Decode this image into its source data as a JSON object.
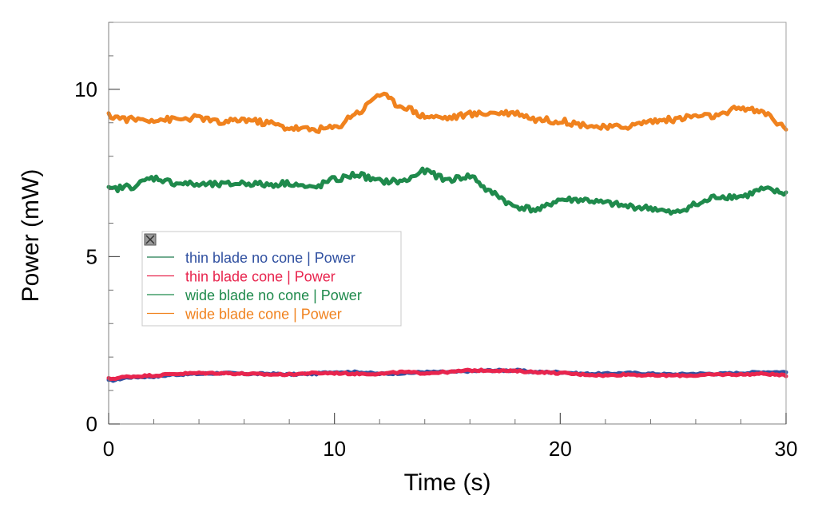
{
  "chart_data": {
    "type": "line",
    "title": "",
    "xlabel": "Time (s)",
    "ylabel": "Power (mW)",
    "xlim": [
      0,
      30
    ],
    "ylim": [
      0,
      12
    ],
    "x_ticks": [
      0,
      10,
      20,
      30
    ],
    "y_ticks": [
      0,
      5,
      10
    ],
    "x_minor_step": 2,
    "y_minor_step": 1,
    "grid": false,
    "legend_position": "middle-left",
    "x": [
      0,
      1,
      2,
      3,
      4,
      5,
      6,
      7,
      8,
      9,
      10,
      11,
      12,
      13,
      14,
      15,
      16,
      17,
      18,
      19,
      20,
      21,
      22,
      23,
      24,
      25,
      26,
      27,
      28,
      29,
      30
    ],
    "series": [
      {
        "name": "thin blade no cone | Power",
        "legend_color": "#1f7a4d",
        "text_color": "#3050a0",
        "line_color": "#3050a0",
        "values": [
          1.3,
          1.4,
          1.42,
          1.48,
          1.5,
          1.52,
          1.5,
          1.5,
          1.48,
          1.5,
          1.55,
          1.55,
          1.5,
          1.52,
          1.55,
          1.55,
          1.58,
          1.6,
          1.6,
          1.55,
          1.55,
          1.5,
          1.5,
          1.52,
          1.5,
          1.48,
          1.5,
          1.5,
          1.52,
          1.55,
          1.55
        ]
      },
      {
        "name": "thin blade cone | Power",
        "legend_color": "#e8254e",
        "text_color": "#e8254e",
        "line_color": "#e8254e",
        "values": [
          1.35,
          1.42,
          1.45,
          1.5,
          1.52,
          1.52,
          1.5,
          1.48,
          1.48,
          1.52,
          1.52,
          1.5,
          1.5,
          1.55,
          1.52,
          1.55,
          1.6,
          1.6,
          1.58,
          1.55,
          1.52,
          1.48,
          1.45,
          1.48,
          1.45,
          1.45,
          1.45,
          1.48,
          1.48,
          1.5,
          1.45
        ]
      },
      {
        "name": "wide blade no cone | Power",
        "legend_color": "#1f8a4c",
        "text_color": "#1f8a4c",
        "line_color": "#1f8a4c",
        "values": [
          7.0,
          7.1,
          7.35,
          7.2,
          7.15,
          7.15,
          7.2,
          7.15,
          7.2,
          7.05,
          7.3,
          7.45,
          7.25,
          7.25,
          7.55,
          7.3,
          7.4,
          6.9,
          6.5,
          6.4,
          6.7,
          6.7,
          6.6,
          6.5,
          6.45,
          6.3,
          6.55,
          6.8,
          6.8,
          7.0,
          6.9
        ]
      },
      {
        "name": "wide blade cone | Power",
        "legend_color": "#f0821e",
        "text_color": "#f0821e",
        "line_color": "#f0821e",
        "values": [
          9.2,
          9.1,
          9.1,
          9.1,
          9.15,
          9.0,
          9.1,
          9.0,
          8.85,
          8.8,
          8.85,
          9.3,
          9.85,
          9.5,
          9.2,
          9.15,
          9.25,
          9.3,
          9.3,
          9.1,
          9.05,
          8.95,
          8.85,
          8.9,
          9.05,
          9.1,
          9.2,
          9.2,
          9.45,
          9.3,
          8.85
        ]
      }
    ]
  }
}
